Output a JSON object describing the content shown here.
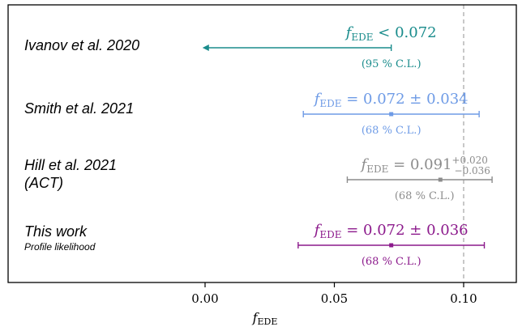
{
  "chart_data": {
    "type": "scatter",
    "title": "",
    "xlabel": {
      "main": "f",
      "sub": "EDE"
    },
    "xlim": [
      -0.037,
      0.1095
    ],
    "x_ticks": [
      {
        "value": 0.0,
        "label": "0.00"
      },
      {
        "value": 0.05,
        "label": "0.05"
      },
      {
        "value": 0.1,
        "label": "0.10"
      }
    ],
    "reference_line": {
      "x": 0.1,
      "style": "dashed",
      "color": "#aaaaaa"
    },
    "series": [
      {
        "label": "Ivanov et al. 2020",
        "sublabel": "",
        "color": "#1a8c8c",
        "kind": "upper_limit",
        "upper": 0.072,
        "lower_arrow_to": -0.001,
        "annotation": {
          "f": "f",
          "sub": "EDE",
          "relation": " < 0.072",
          "sup": "",
          "subscr": ""
        },
        "cl": "(95 % C.L.)"
      },
      {
        "label": "Smith et al. 2021",
        "sublabel": "",
        "color": "#6e9be6",
        "kind": "point",
        "value": 0.072,
        "low": 0.038,
        "high": 0.106,
        "annotation": {
          "f": "f",
          "sub": "EDE",
          "relation": " = 0.072 ± 0.034",
          "sup": "",
          "subscr": ""
        },
        "cl": "(68 % C.L.)"
      },
      {
        "label": "Hill et al. 2021",
        "sublabel": "(ACT)",
        "color": "#8c8c8c",
        "kind": "point",
        "value": 0.091,
        "low": 0.055,
        "high": 0.111,
        "annotation": {
          "f": "f",
          "sub": "EDE",
          "relation": " = 0.091",
          "sup": "+0.020",
          "subscr": "−0.036"
        },
        "cl": "(68 % C.L.)"
      },
      {
        "label": "This work",
        "sublabel": "Profile likelihood",
        "color": "#8c1a8c",
        "kind": "point",
        "value": 0.072,
        "low": 0.036,
        "high": 0.108,
        "annotation": {
          "f": "f",
          "sub": "EDE",
          "relation": " = 0.072 ± 0.036",
          "sup": "",
          "subscr": ""
        },
        "cl": "(68 % C.L.)"
      }
    ]
  }
}
